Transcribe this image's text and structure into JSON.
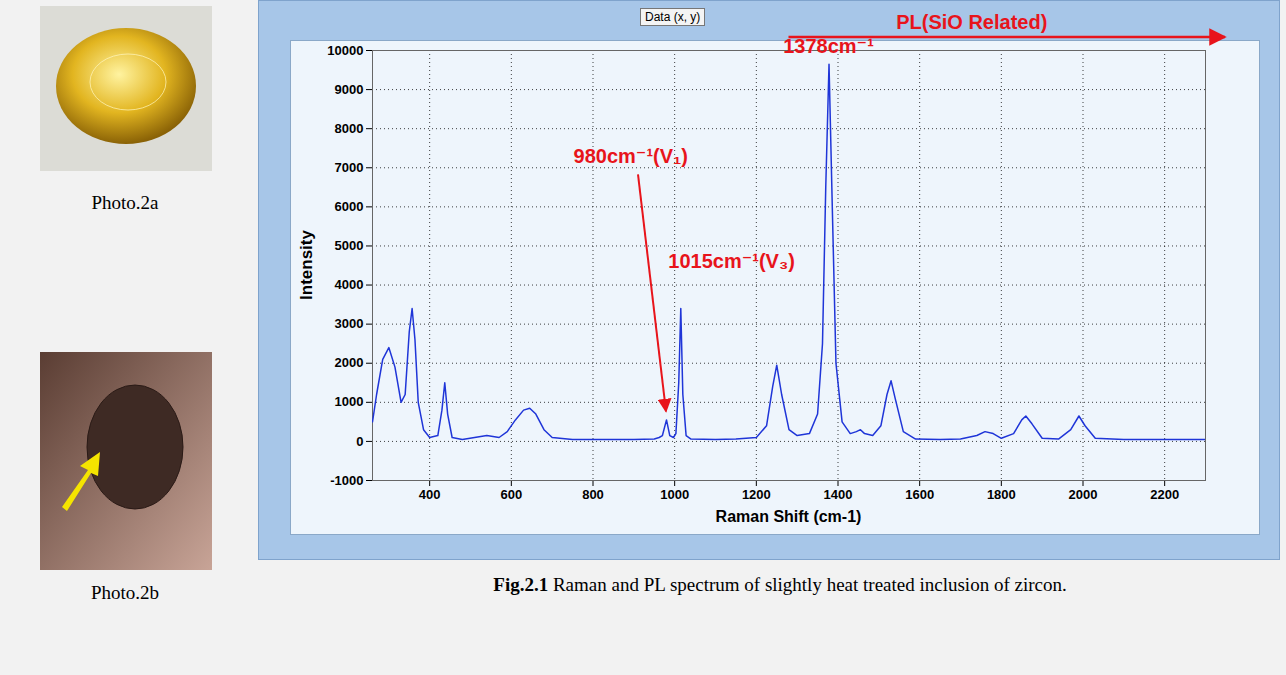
{
  "chart_data": {
    "type": "line",
    "tab_label": "Data (x, y)",
    "x_label": "Raman Shift (cm-1)",
    "y_label": "Intensity",
    "color": "#1f35d8",
    "grid": true,
    "xlim": [
      260,
      2300
    ],
    "ylim": [
      -1000,
      10000
    ],
    "xticks": [
      400,
      600,
      800,
      1000,
      1200,
      1400,
      1600,
      1800,
      2000,
      2200
    ],
    "yticks": [
      -1000,
      0,
      1000,
      2000,
      3000,
      4000,
      5000,
      6000,
      7000,
      8000,
      9000,
      10000
    ],
    "x": [
      260,
      270,
      285,
      300,
      315,
      330,
      340,
      350,
      357,
      364,
      372,
      385,
      400,
      420,
      430,
      437,
      444,
      455,
      480,
      510,
      540,
      570,
      590,
      610,
      630,
      645,
      660,
      680,
      700,
      750,
      800,
      850,
      900,
      950,
      962,
      970,
      980,
      988,
      997,
      1003,
      1010,
      1015,
      1020,
      1028,
      1040,
      1100,
      1150,
      1200,
      1225,
      1240,
      1250,
      1262,
      1280,
      1300,
      1330,
      1350,
      1362,
      1370,
      1378,
      1386,
      1395,
      1410,
      1430,
      1445,
      1455,
      1465,
      1485,
      1505,
      1520,
      1530,
      1540,
      1560,
      1590,
      1650,
      1700,
      1740,
      1760,
      1780,
      1800,
      1830,
      1850,
      1860,
      1875,
      1900,
      1940,
      1970,
      1990,
      2005,
      2030,
      2100,
      2200,
      2300
    ],
    "values": [
      500,
      1200,
      2100,
      2400,
      1900,
      1000,
      1200,
      2800,
      3400,
      2600,
      1000,
      300,
      100,
      150,
      800,
      1500,
      700,
      100,
      50,
      100,
      150,
      100,
      250,
      550,
      800,
      850,
      700,
      300,
      100,
      50,
      50,
      50,
      50,
      60,
      100,
      150,
      550,
      150,
      100,
      200,
      1500,
      3400,
      1200,
      150,
      60,
      50,
      60,
      100,
      400,
      1400,
      1950,
      1200,
      300,
      150,
      200,
      700,
      2500,
      6500,
      9650,
      6000,
      2000,
      500,
      200,
      250,
      300,
      200,
      150,
      400,
      1200,
      1550,
      1100,
      250,
      60,
      50,
      60,
      150,
      250,
      200,
      80,
      200,
      550,
      650,
      450,
      80,
      60,
      300,
      650,
      400,
      80,
      50,
      50,
      50
    ],
    "annotations": [
      {
        "text": "1378cm⁻¹",
        "x": 1378,
        "y": 9650,
        "color": "#e8141b"
      },
      {
        "text": "980cm⁻¹(V₁)",
        "x": 980,
        "y": 550,
        "color": "#e8141b"
      },
      {
        "text": "1015cm⁻¹(V₃)",
        "x": 1015,
        "y": 3400,
        "color": "#e8141b"
      },
      {
        "text": "PL(SiO Related)",
        "color": "#e8141b"
      }
    ]
  },
  "photos": [
    {
      "caption": "Photo.2a"
    },
    {
      "caption": "Photo.2b"
    }
  ],
  "caption": "Fig.2.1 Raman and PL spectrum of slightly heat treated inclusion of zircon."
}
